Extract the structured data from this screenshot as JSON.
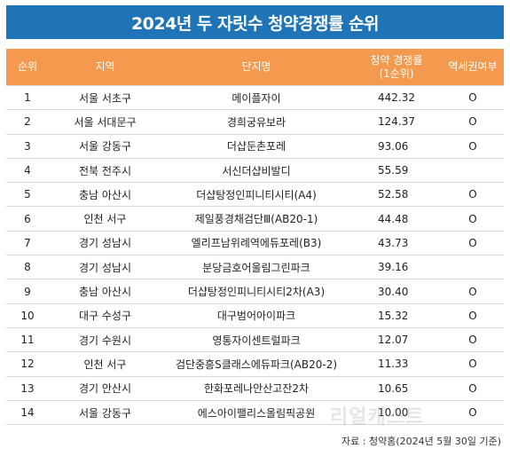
{
  "title": "2024년 두 자릿수 청약경쟁률 순위",
  "table": {
    "headers": [
      "순위",
      "지역",
      "단지명",
      "청약 경쟁률\n(1순위)",
      "역세권여부"
    ],
    "rows": [
      {
        "rank": "1",
        "region": "서울 서초구",
        "complex": "메이플자이",
        "ratio": "442.32",
        "station": "O"
      },
      {
        "rank": "2",
        "region": "서울 서대문구",
        "complex": "경희궁유보라",
        "ratio": "124.37",
        "station": "O"
      },
      {
        "rank": "3",
        "region": "서울 강동구",
        "complex": "더샵둔촌포레",
        "ratio": "93.06",
        "station": "O"
      },
      {
        "rank": "4",
        "region": "전북 전주시",
        "complex": "서신더샵비발디",
        "ratio": "55.59",
        "station": ""
      },
      {
        "rank": "5",
        "region": "충남 아산시",
        "complex": "더샵탕정인피니티시티(A4)",
        "ratio": "52.58",
        "station": "O"
      },
      {
        "rank": "6",
        "region": "인천 서구",
        "complex": "제일풍경채검단Ⅲ(AB20-1)",
        "ratio": "44.48",
        "station": "O"
      },
      {
        "rank": "7",
        "region": "경기 성남시",
        "complex": "엘리프남위례역에듀포레(B3)",
        "ratio": "43.73",
        "station": "O"
      },
      {
        "rank": "8",
        "region": "경기 성남시",
        "complex": "분당금호어울림그린파크",
        "ratio": "39.16",
        "station": ""
      },
      {
        "rank": "9",
        "region": "충남 아산시",
        "complex": "더샵탕정인피니티시티2차(A3)",
        "ratio": "30.40",
        "station": "O"
      },
      {
        "rank": "10",
        "region": "대구 수성구",
        "complex": "대구범어아이파크",
        "ratio": "15.32",
        "station": "O"
      },
      {
        "rank": "11",
        "region": "경기 수원시",
        "complex": "영통자이센트럴파크",
        "ratio": "12.07",
        "station": "O"
      },
      {
        "rank": "12",
        "region": "인천 서구",
        "complex": "검단중흥S클래스에듀파크(AB20-2)",
        "ratio": "11.33",
        "station": "O"
      },
      {
        "rank": "13",
        "region": "경기 안산시",
        "complex": "한화포레나안산고잔2차",
        "ratio": "10.65",
        "station": "O"
      },
      {
        "rank": "14",
        "region": "서울 강동구",
        "complex": "에스아이팰리스올림픽공원",
        "ratio": "10.00",
        "station": "O"
      }
    ]
  },
  "source": "자료 : 청약홈(2024년 5월 30일 기준)",
  "watermark": "리얼캐스트",
  "colors": {
    "title_bg": "#1f73b7",
    "header_bg": "#f39a4f",
    "row_border": "#d9d9d9"
  }
}
